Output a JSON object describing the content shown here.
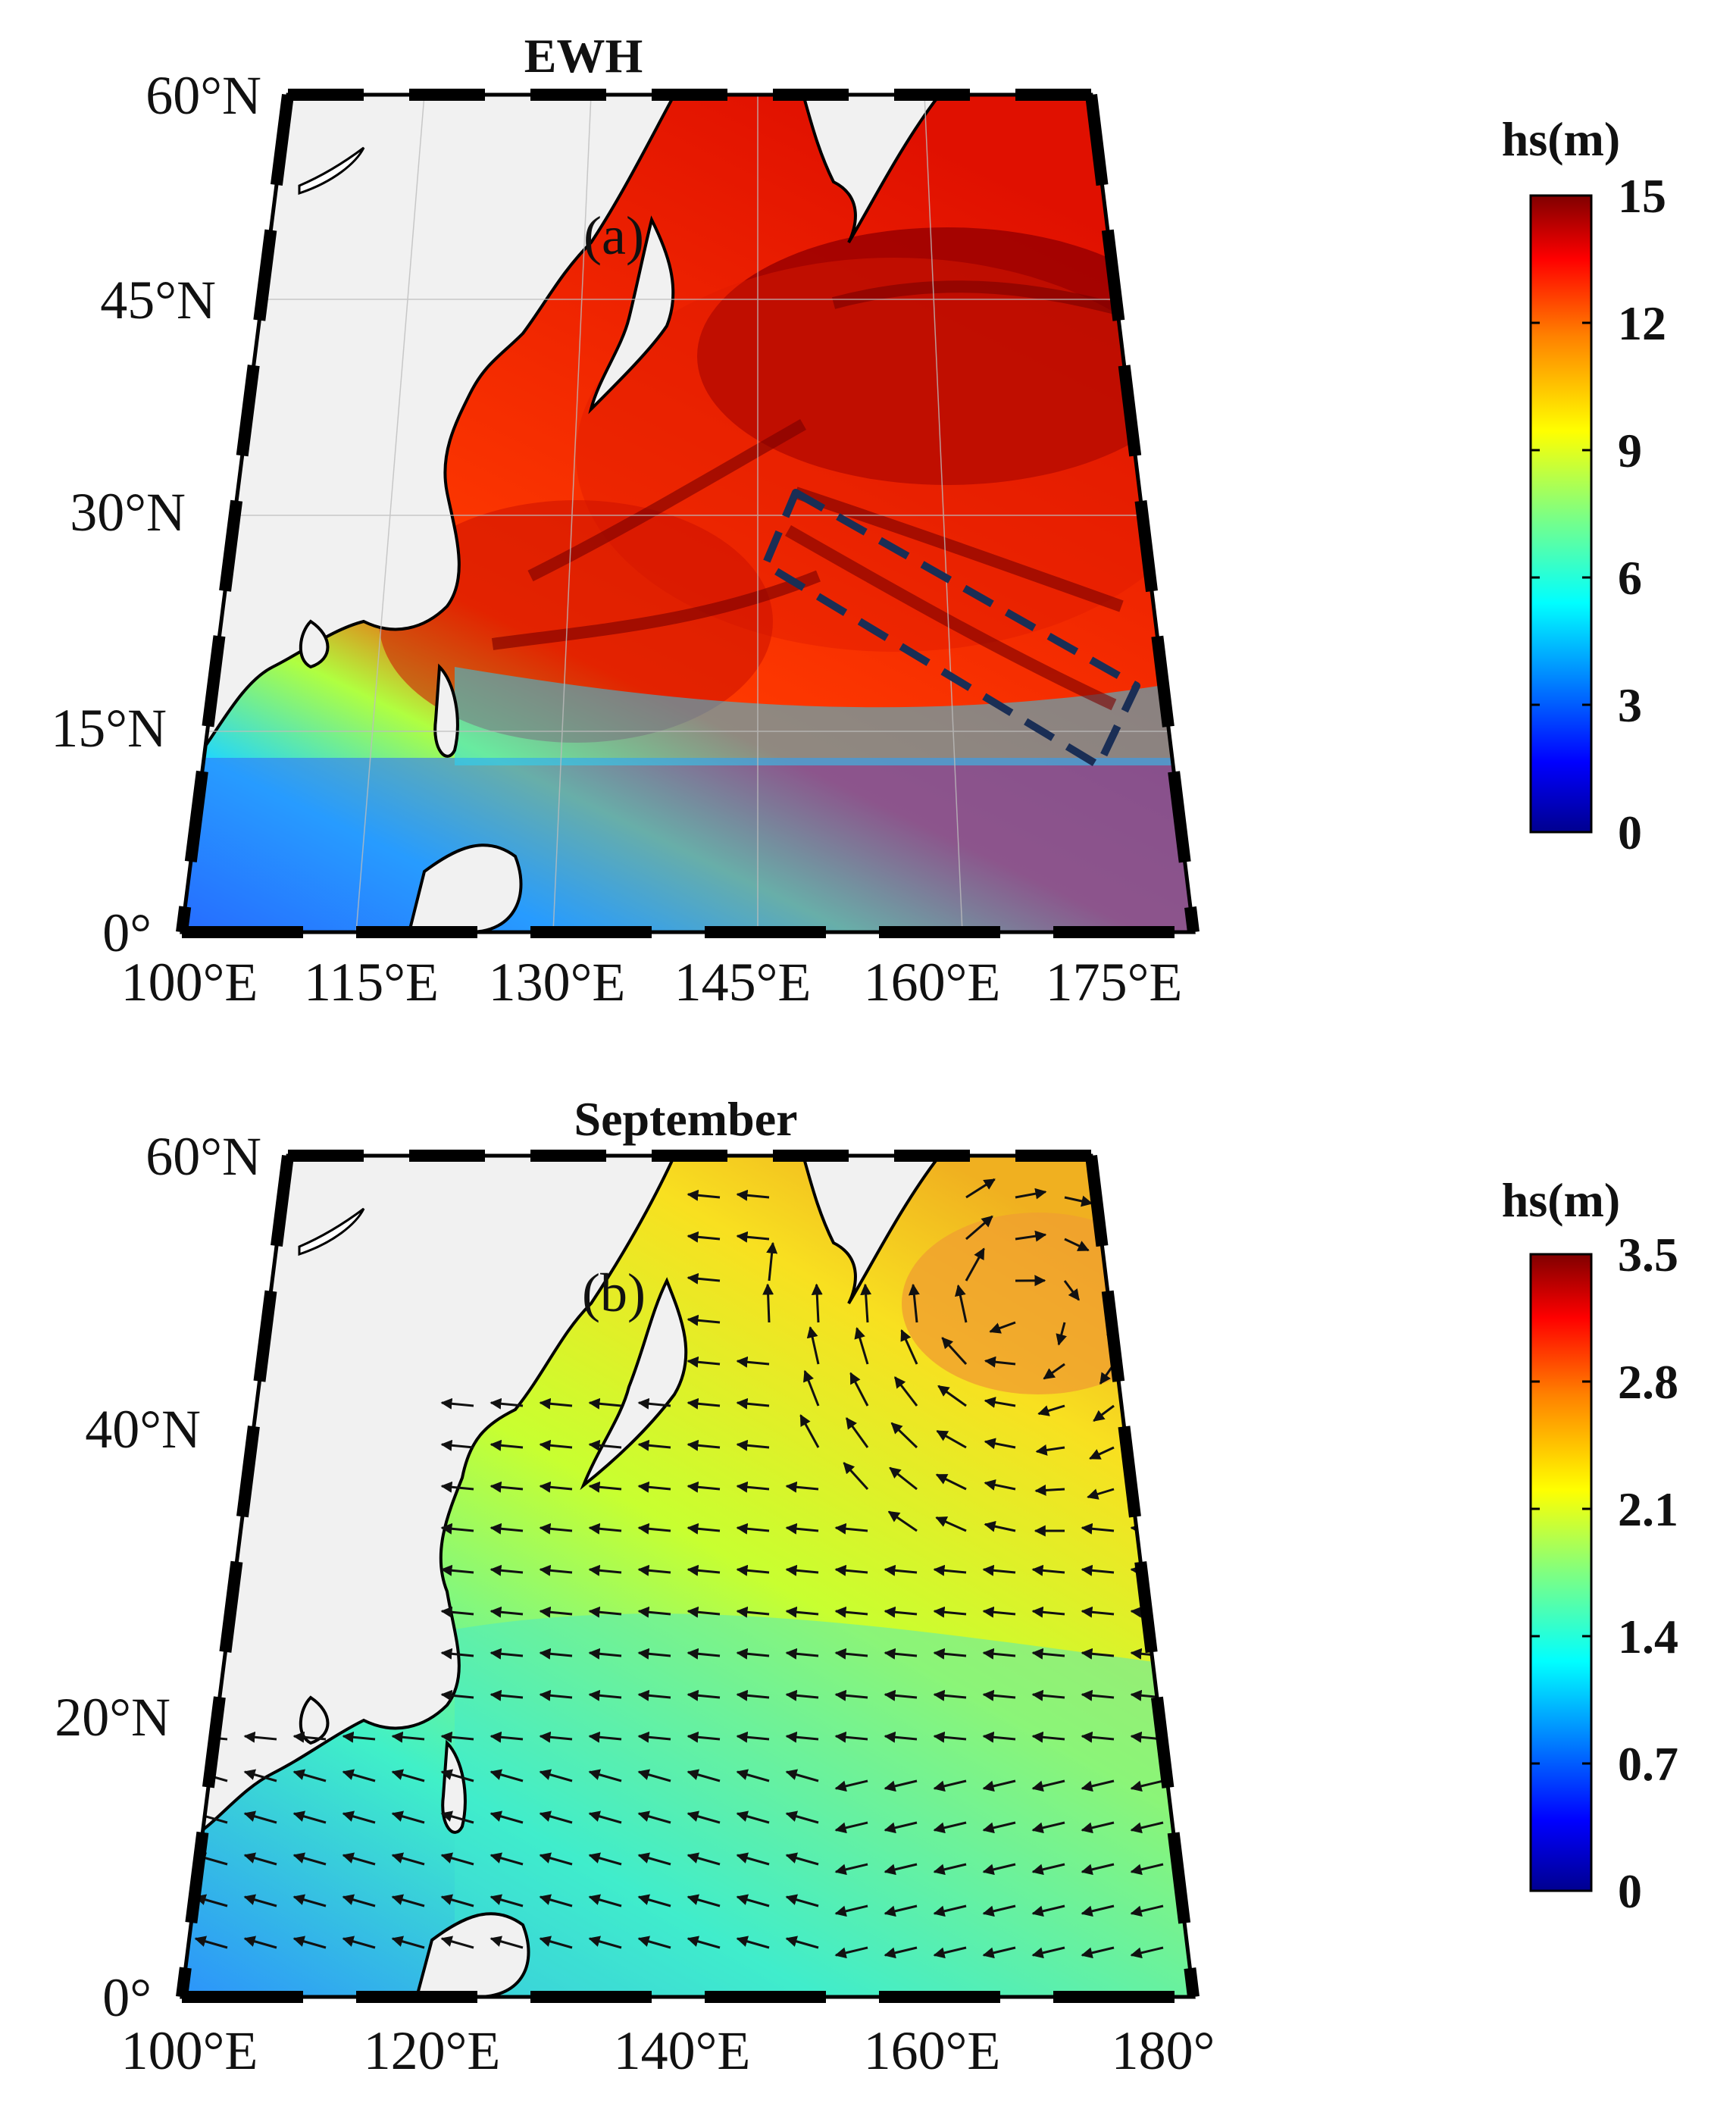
{
  "panels": [
    {
      "id": "a",
      "title": "EWH",
      "panel_label": "(a)",
      "lat_ticks": [
        "60°N",
        "45°N",
        "30°N",
        "15°N",
        "0°"
      ],
      "lon_ticks": [
        "100°E",
        "115°E",
        "130°E",
        "145°E",
        "160°E",
        "175°E"
      ],
      "colorbar": {
        "title": "hs(m)",
        "ticks": [
          "15",
          "12",
          "9",
          "6",
          "3",
          "0"
        ],
        "range": [
          0,
          15
        ]
      },
      "annotation": "dashed-box"
    },
    {
      "id": "b",
      "title": "September",
      "panel_label": "(b)",
      "lat_ticks": [
        "60°N",
        "40°N",
        "20°N",
        "0°"
      ],
      "lon_ticks": [
        "100°E",
        "120°E",
        "140°E",
        "160°E",
        "180°"
      ],
      "colorbar": {
        "title": "hs(m)",
        "ticks": [
          "3.5",
          "2.8",
          "2.1",
          "1.4",
          "0.7",
          "0"
        ],
        "range": [
          0,
          3.5
        ]
      },
      "vectors": true
    }
  ],
  "colors": {
    "land": "#f1f1f1",
    "coast": "#000000",
    "jet": [
      "#00008f",
      "#0000ff",
      "#00ffff",
      "#80ff80",
      "#ffff00",
      "#ff8000",
      "#ff0000",
      "#800000"
    ]
  }
}
